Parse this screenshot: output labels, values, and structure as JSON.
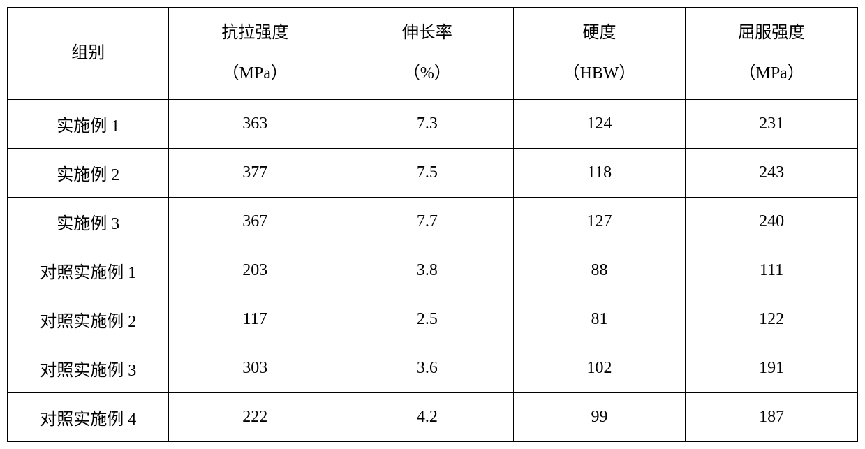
{
  "table": {
    "type": "table",
    "background_color": "#ffffff",
    "border_color": "#000000",
    "border_width": 1.5,
    "text_color": "#000000",
    "font_family": "SimSun",
    "header_fontsize": 24,
    "cell_fontsize": 24,
    "header_row_height": 128,
    "data_row_height": 70,
    "columns": [
      {
        "label_line1": "组别",
        "label_line2": "",
        "width_pct": 19,
        "align": "center"
      },
      {
        "label_line1": "抗拉强度",
        "label_line2": "（MPa）",
        "width_pct": 20.25,
        "align": "center"
      },
      {
        "label_line1": "伸长率",
        "label_line2": "（%）",
        "width_pct": 20.25,
        "align": "center"
      },
      {
        "label_line1": "硬度",
        "label_line2": "（HBW）",
        "width_pct": 20.25,
        "align": "center"
      },
      {
        "label_line1": "屈服强度",
        "label_line2": "（MPa）",
        "width_pct": 20.25,
        "align": "center"
      }
    ],
    "rows": [
      {
        "group": "实施例 1",
        "tensile": "363",
        "elongation": "7.3",
        "hardness": "124",
        "yield": "231"
      },
      {
        "group": "实施例 2",
        "tensile": "377",
        "elongation": "7.5",
        "hardness": "118",
        "yield": "243"
      },
      {
        "group": "实施例 3",
        "tensile": "367",
        "elongation": "7.7",
        "hardness": "127",
        "yield": "240"
      },
      {
        "group": "对照实施例 1",
        "tensile": "203",
        "elongation": "3.8",
        "hardness": "88",
        "yield": "111"
      },
      {
        "group": "对照实施例 2",
        "tensile": "117",
        "elongation": "2.5",
        "hardness": "81",
        "yield": "122"
      },
      {
        "group": "对照实施例 3",
        "tensile": "303",
        "elongation": "3.6",
        "hardness": "102",
        "yield": "191"
      },
      {
        "group": "对照实施例 4",
        "tensile": "222",
        "elongation": "4.2",
        "hardness": "99",
        "yield": "187"
      }
    ]
  }
}
